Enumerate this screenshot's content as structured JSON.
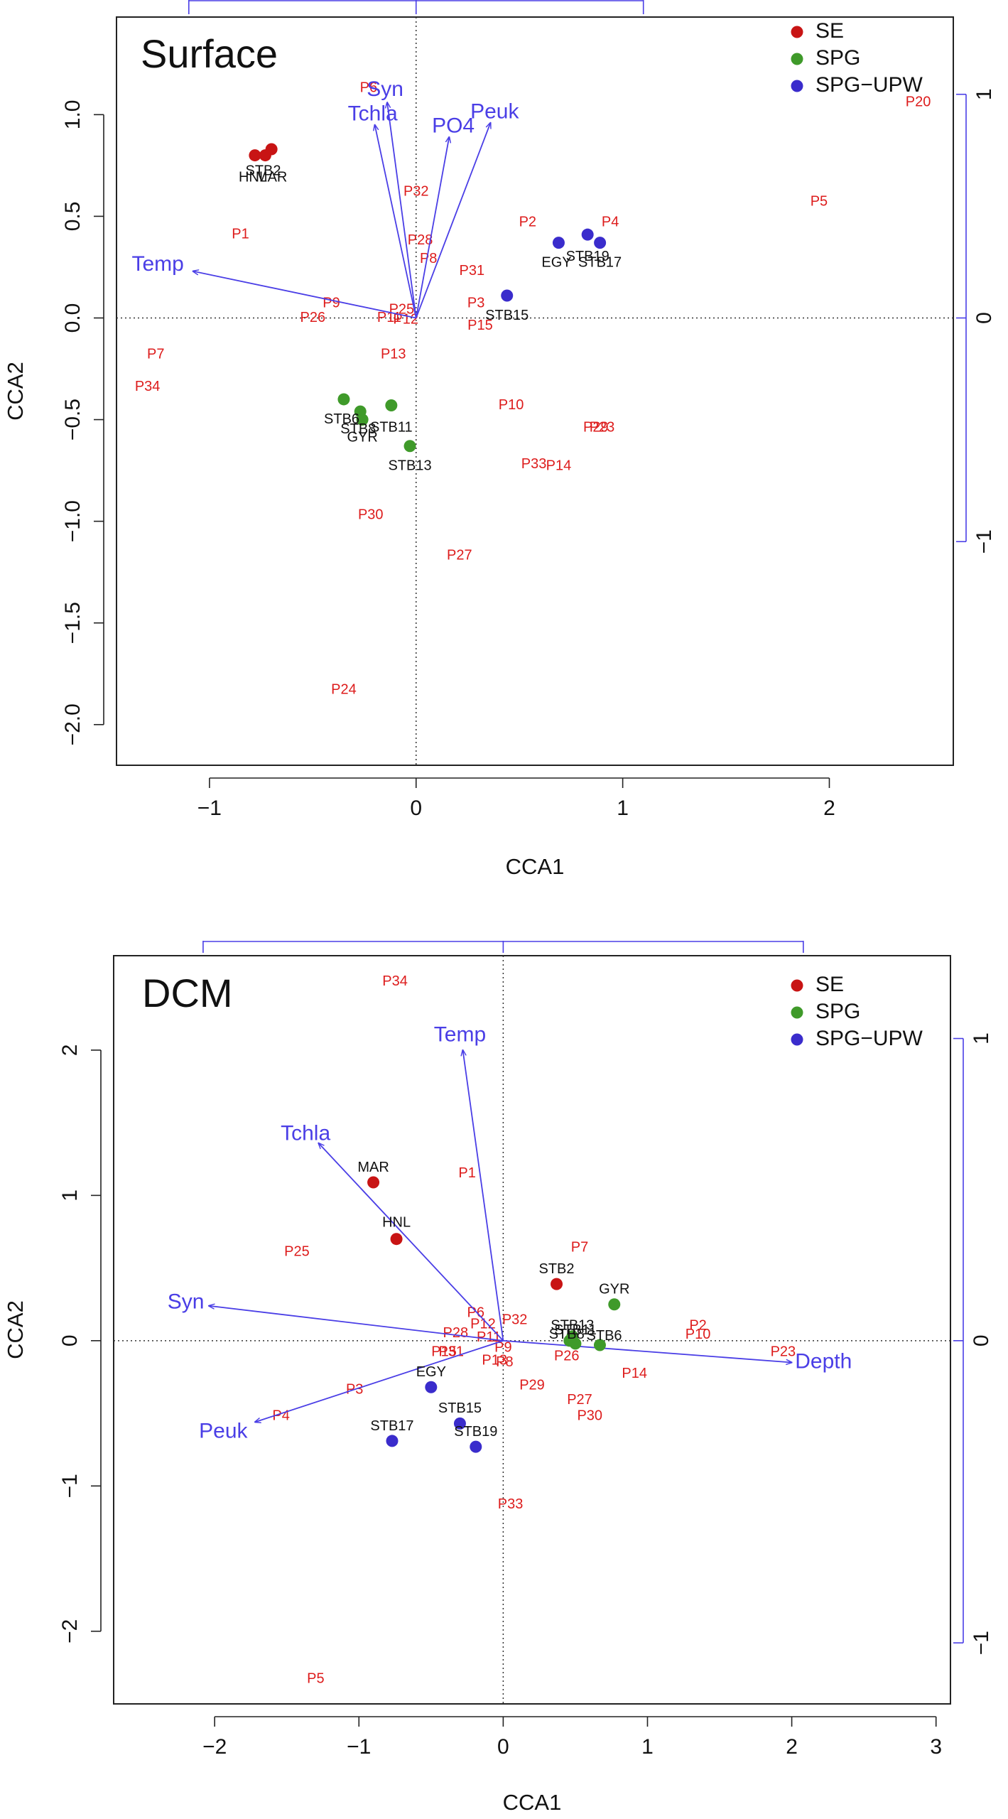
{
  "colors": {
    "SE": "#c81414",
    "SPG": "#3f9a2a",
    "SPG-UPW": "#3a2ccc",
    "otu_label": "#dd1c1c",
    "arrow": "#4a3ee6",
    "axis": "#222222"
  },
  "chart_data": [
    {
      "type": "scatter",
      "subtype": "CCA biplot",
      "title": "Surface",
      "xlabel": "CCA1",
      "ylabel": "CCA2",
      "xlim": [
        -1.45,
        2.6
      ],
      "ylim": [
        -2.2,
        1.48
      ],
      "xticks": [
        -1,
        0,
        1,
        2
      ],
      "yticks": [
        -2.0,
        -1.5,
        -1.0,
        -0.5,
        0.0,
        0.5,
        1.0
      ],
      "ytick_labels": [
        "−2.0",
        "−1.5",
        "−1.0",
        "−0.5",
        "0.0",
        "0.5",
        "1.0"
      ],
      "xtick_labels": [
        "−1",
        "0",
        "1",
        "2"
      ],
      "secondary_axis": {
        "scale": 1.1,
        "ticks": [
          -1,
          0,
          1
        ],
        "tick_labels": [
          "−1",
          "0",
          "1"
        ],
        "x_ticks": [
          -1.1,
          0,
          1.1
        ]
      },
      "legend": {
        "position": "top-right",
        "entries": [
          {
            "label": "SE",
            "color_key": "SE"
          },
          {
            "label": "SPG",
            "color_key": "SPG"
          },
          {
            "label": "SPG−UPW",
            "color_key": "SPG-UPW"
          }
        ]
      },
      "vectors": [
        {
          "label": "Temp",
          "x": -1.08,
          "y": 0.23
        },
        {
          "label": "Syn",
          "x": -0.14,
          "y": 1.06
        },
        {
          "label": "Tchla",
          "x": -0.2,
          "y": 0.95
        },
        {
          "label": "PO4",
          "x": 0.16,
          "y": 0.89
        },
        {
          "label": "Peuk",
          "x": 0.36,
          "y": 0.96
        }
      ],
      "vector_labels": [
        {
          "label": "Temp",
          "x": -1.25,
          "y": 0.26
        },
        {
          "label": "Syn",
          "x": -0.15,
          "y": 1.12
        },
        {
          "label": "Tchla",
          "x": -0.21,
          "y": 1.0
        },
        {
          "label": "PO4",
          "x": 0.18,
          "y": 0.94
        },
        {
          "label": "Peuk",
          "x": 0.38,
          "y": 1.01
        }
      ],
      "sites": [
        {
          "label": "STB2",
          "group": "SE",
          "x": -0.7,
          "y": 0.83
        },
        {
          "label": "HNL",
          "group": "SE",
          "x": -0.78,
          "y": 0.8
        },
        {
          "label": "MAR",
          "group": "SE",
          "x": -0.73,
          "y": 0.8
        },
        {
          "label": "STB19",
          "group": "SPG-UPW",
          "x": 0.83,
          "y": 0.41
        },
        {
          "label": "STB17",
          "group": "SPG-UPW",
          "x": 0.89,
          "y": 0.37
        },
        {
          "label": "EGY",
          "group": "SPG-UPW",
          "x": 0.69,
          "y": 0.37
        },
        {
          "label": "STB15",
          "group": "SPG-UPW",
          "x": 0.44,
          "y": 0.11
        },
        {
          "label": "STB6",
          "group": "SPG",
          "x": -0.35,
          "y": -0.4
        },
        {
          "label": "STB11",
          "group": "SPG",
          "x": -0.12,
          "y": -0.43
        },
        {
          "label": "STB13",
          "group": "SPG",
          "x": -0.03,
          "y": -0.63
        },
        {
          "label": "STB8",
          "group": "SPG",
          "x": -0.27,
          "y": -0.46
        },
        {
          "label": "GYR",
          "group": "SPG",
          "x": -0.26,
          "y": -0.5
        }
      ],
      "site_labels": [
        {
          "text": "STB2",
          "x": -0.74,
          "y": 0.72
        },
        {
          "text": "HNL",
          "x": -0.79,
          "y": 0.69
        },
        {
          "text": "MAR",
          "x": -0.7,
          "y": 0.69
        },
        {
          "text": "STB19",
          "x": 0.83,
          "y": 0.3
        },
        {
          "text": "EGY",
          "x": 0.68,
          "y": 0.27
        },
        {
          "text": "STB17",
          "x": 0.89,
          "y": 0.27
        },
        {
          "text": "STB15",
          "x": 0.44,
          "y": 0.01
        },
        {
          "text": "STB6",
          "x": -0.36,
          "y": -0.5
        },
        {
          "text": "STB11",
          "x": -0.12,
          "y": -0.54
        },
        {
          "text": "STB8",
          "x": -0.28,
          "y": -0.55
        },
        {
          "text": "GYR",
          "x": -0.26,
          "y": -0.59
        },
        {
          "text": "STB13",
          "x": -0.03,
          "y": -0.73
        }
      ],
      "species": [
        {
          "label": "P6",
          "x": -0.23,
          "y": 1.13
        },
        {
          "label": "P32",
          "x": 0.0,
          "y": 0.62
        },
        {
          "label": "P28",
          "x": 0.02,
          "y": 0.38
        },
        {
          "label": "P8",
          "x": 0.06,
          "y": 0.29
        },
        {
          "label": "P31",
          "x": 0.27,
          "y": 0.23
        },
        {
          "label": "P2",
          "x": 0.54,
          "y": 0.47
        },
        {
          "label": "P4",
          "x": 0.94,
          "y": 0.47
        },
        {
          "label": "P5",
          "x": 1.95,
          "y": 0.57
        },
        {
          "label": "P20",
          "x": 2.43,
          "y": 1.06
        },
        {
          "label": "P1",
          "x": -0.85,
          "y": 0.41
        },
        {
          "label": "P9",
          "x": -0.41,
          "y": 0.07
        },
        {
          "label": "P26",
          "x": -0.5,
          "y": 0.0
        },
        {
          "label": "P25",
          "x": -0.07,
          "y": 0.04
        },
        {
          "label": "P11",
          "x": -0.13,
          "y": 0.0
        },
        {
          "label": "P12",
          "x": -0.05,
          "y": -0.01
        },
        {
          "label": "P3",
          "x": 0.29,
          "y": 0.07
        },
        {
          "label": "P15",
          "x": 0.31,
          "y": -0.04
        },
        {
          "label": "P13",
          "x": -0.11,
          "y": -0.18
        },
        {
          "label": "P7",
          "x": -1.26,
          "y": -0.18
        },
        {
          "label": "P34",
          "x": -1.3,
          "y": -0.34
        },
        {
          "label": "P10",
          "x": 0.46,
          "y": -0.43
        },
        {
          "label": "P29",
          "x": 0.87,
          "y": -0.54
        },
        {
          "label": "P23",
          "x": 0.9,
          "y": -0.54
        },
        {
          "label": "P33",
          "x": 0.57,
          "y": -0.72
        },
        {
          "label": "P14",
          "x": 0.69,
          "y": -0.73
        },
        {
          "label": "P30",
          "x": -0.22,
          "y": -0.97
        },
        {
          "label": "P27",
          "x": 0.21,
          "y": -1.17
        },
        {
          "label": "P24",
          "x": -0.35,
          "y": -1.83
        }
      ]
    },
    {
      "type": "scatter",
      "subtype": "CCA biplot",
      "title": "DCM",
      "xlabel": "CCA1",
      "ylabel": "CCA2",
      "xlim": [
        -2.7,
        3.1
      ],
      "ylim": [
        -2.5,
        2.65
      ],
      "xticks": [
        -2,
        -1,
        0,
        1,
        2,
        3
      ],
      "xtick_labels": [
        "−2",
        "−1",
        "0",
        "1",
        "2",
        "3"
      ],
      "yticks": [
        -2,
        -1,
        0,
        1,
        2
      ],
      "ytick_labels": [
        "−2",
        "−1",
        "0",
        "1",
        "2"
      ],
      "secondary_axis": {
        "scale": 2.08,
        "ticks": [
          -1,
          0,
          1
        ],
        "tick_labels": [
          "−1",
          "0",
          "1"
        ],
        "x_ticks": [
          -2.08,
          0,
          2.08
        ]
      },
      "legend": {
        "position": "top-right",
        "entries": [
          {
            "label": "SE",
            "color_key": "SE"
          },
          {
            "label": "SPG",
            "color_key": "SPG"
          },
          {
            "label": "SPG−UPW",
            "color_key": "SPG-UPW"
          }
        ]
      },
      "vectors": [
        {
          "label": "Temp",
          "x": -0.28,
          "y": 2.0
        },
        {
          "label": "Tchla",
          "x": -1.28,
          "y": 1.36
        },
        {
          "label": "Syn",
          "x": -2.04,
          "y": 0.24
        },
        {
          "label": "Peuk",
          "x": -1.72,
          "y": -0.56
        },
        {
          "label": "Depth",
          "x": 2.0,
          "y": -0.15
        }
      ],
      "vector_labels": [
        {
          "label": "Temp",
          "x": -0.3,
          "y": 2.1
        },
        {
          "label": "Tchla",
          "x": -1.37,
          "y": 1.42
        },
        {
          "label": "Syn",
          "x": -2.2,
          "y": 0.26
        },
        {
          "label": "Peuk",
          "x": -1.94,
          "y": -0.63
        },
        {
          "label": "Depth",
          "x": 2.22,
          "y": -0.15
        }
      ],
      "sites": [
        {
          "label": "MAR",
          "group": "SE",
          "x": -0.9,
          "y": 1.09
        },
        {
          "label": "HNL",
          "group": "SE",
          "x": -0.74,
          "y": 0.7
        },
        {
          "label": "STB2",
          "group": "SE",
          "x": 0.37,
          "y": 0.39
        },
        {
          "label": "GYR",
          "group": "SPG",
          "x": 0.77,
          "y": 0.25
        },
        {
          "label": "STB6",
          "group": "SPG",
          "x": 0.67,
          "y": -0.03
        },
        {
          "label": "STB13",
          "group": "SPG",
          "x": 0.48,
          "y": 0.03
        },
        {
          "label": "STB11",
          "group": "SPG",
          "x": 0.46,
          "y": 0.0
        },
        {
          "label": "STB8",
          "group": "SPG",
          "x": 0.5,
          "y": -0.02
        },
        {
          "label": "EGY",
          "group": "SPG-UPW",
          "x": -0.5,
          "y": -0.32
        },
        {
          "label": "STB15",
          "group": "SPG-UPW",
          "x": -0.3,
          "y": -0.57
        },
        {
          "label": "STB17",
          "group": "SPG-UPW",
          "x": -0.77,
          "y": -0.69
        },
        {
          "label": "STB19",
          "group": "SPG-UPW",
          "x": -0.19,
          "y": -0.73
        }
      ],
      "site_labels": [
        {
          "text": "MAR",
          "x": -0.9,
          "y": 1.19
        },
        {
          "text": "HNL",
          "x": -0.74,
          "y": 0.81
        },
        {
          "text": "STB2",
          "x": 0.37,
          "y": 0.49
        },
        {
          "text": "GYR",
          "x": 0.77,
          "y": 0.35
        },
        {
          "text": "STB13",
          "x": 0.48,
          "y": 0.1
        },
        {
          "text": "STB11",
          "x": 0.5,
          "y": 0.07
        },
        {
          "text": "STB8",
          "x": 0.44,
          "y": 0.04
        },
        {
          "text": "STB6",
          "x": 0.7,
          "y": 0.03
        },
        {
          "text": "EGY",
          "x": -0.5,
          "y": -0.22
        },
        {
          "text": "STB15",
          "x": -0.3,
          "y": -0.47
        },
        {
          "text": "STB17",
          "x": -0.77,
          "y": -0.59
        },
        {
          "text": "STB19",
          "x": -0.19,
          "y": -0.63
        }
      ],
      "species": [
        {
          "label": "P34",
          "x": -0.75,
          "y": 2.47
        },
        {
          "label": "P1",
          "x": -0.25,
          "y": 1.15
        },
        {
          "label": "P25",
          "x": -1.43,
          "y": 0.61
        },
        {
          "label": "P7",
          "x": 0.53,
          "y": 0.64
        },
        {
          "label": "P6",
          "x": -0.19,
          "y": 0.19
        },
        {
          "label": "P12",
          "x": -0.14,
          "y": 0.11
        },
        {
          "label": "P32",
          "x": 0.08,
          "y": 0.14
        },
        {
          "label": "P28",
          "x": -0.33,
          "y": 0.05
        },
        {
          "label": "P11",
          "x": -0.1,
          "y": 0.02
        },
        {
          "label": "P31",
          "x": -0.36,
          "y": -0.08
        },
        {
          "label": "P15",
          "x": -0.41,
          "y": -0.08
        },
        {
          "label": "P9",
          "x": 0.0,
          "y": -0.05
        },
        {
          "label": "P13",
          "x": -0.06,
          "y": -0.14
        },
        {
          "label": "P8",
          "x": 0.01,
          "y": -0.15
        },
        {
          "label": "P26",
          "x": 0.44,
          "y": -0.11
        },
        {
          "label": "P2",
          "x": 1.35,
          "y": 0.1
        },
        {
          "label": "P10",
          "x": 1.35,
          "y": 0.04
        },
        {
          "label": "P23",
          "x": 1.94,
          "y": -0.08
        },
        {
          "label": "P14",
          "x": 0.91,
          "y": -0.23
        },
        {
          "label": "P29",
          "x": 0.2,
          "y": -0.31
        },
        {
          "label": "P27",
          "x": 0.53,
          "y": -0.41
        },
        {
          "label": "P30",
          "x": 0.6,
          "y": -0.52
        },
        {
          "label": "P3",
          "x": -1.03,
          "y": -0.34
        },
        {
          "label": "P4",
          "x": -1.54,
          "y": -0.52
        },
        {
          "label": "P33",
          "x": 0.05,
          "y": -1.13
        },
        {
          "label": "P5",
          "x": -1.3,
          "y": -2.33
        }
      ]
    }
  ]
}
